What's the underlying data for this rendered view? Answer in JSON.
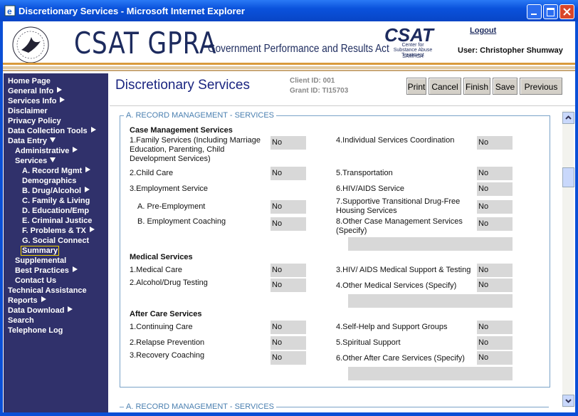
{
  "window": {
    "title": "Discretionary Services - Microsoft Internet Explorer"
  },
  "header": {
    "title": "CSAT GPRA",
    "subtitle": "Government Performance and Results Act",
    "logo_text": "CSAT",
    "logo_caption": "Center for Substance Abuse Treatment",
    "logo_org": "SAMHSA",
    "logout": "Logout",
    "user": "User: Christopher Shumway"
  },
  "nav": [
    {
      "label": "Home Page",
      "level": 0
    },
    {
      "label": "General Info",
      "level": 0,
      "arrow": "right"
    },
    {
      "label": "Services Info",
      "level": 0,
      "arrow": "right"
    },
    {
      "label": "Disclaimer",
      "level": 0
    },
    {
      "label": "Privacy Policy",
      "level": 0
    },
    {
      "label": "Data Collection Tools",
      "level": 0,
      "arrow": "right"
    },
    {
      "label": "Data Entry",
      "level": 0,
      "arrow": "down"
    },
    {
      "label": "Administrative",
      "level": 1,
      "arrow": "right"
    },
    {
      "label": "Services",
      "level": 1,
      "arrow": "down"
    },
    {
      "label": "A. Record Mgmt",
      "level": 2,
      "arrow": "right"
    },
    {
      "label": "Demographics",
      "level": 2
    },
    {
      "label": "B. Drug/Alcohol",
      "level": 2,
      "arrow": "right"
    },
    {
      "label": "C. Family & Living",
      "level": 2
    },
    {
      "label": "D. Education/Emp",
      "level": 2
    },
    {
      "label": "E. Criminal Justice",
      "level": 2
    },
    {
      "label": "F. Problems & TX",
      "level": 2,
      "arrow": "right"
    },
    {
      "label": "G. Social Connect",
      "level": 2
    },
    {
      "label": "Summary",
      "level": 2,
      "selected": true
    },
    {
      "label": "Supplemental",
      "level": 1
    },
    {
      "label": "Best Practices",
      "level": 1,
      "arrow": "right"
    },
    {
      "label": "Contact Us",
      "level": 1
    },
    {
      "label": "Technical Assistance",
      "level": 0
    },
    {
      "label": "Reports",
      "level": 0,
      "arrow": "right"
    },
    {
      "label": "Data Download",
      "level": 0,
      "arrow": "right"
    },
    {
      "label": "Search",
      "level": 0
    },
    {
      "label": "Telephone Log",
      "level": 0
    }
  ],
  "page": {
    "title": "Discretionary Services",
    "client_id": "Client ID: 001",
    "grant_id": "Grant ID: TI15703",
    "buttons": [
      "Print",
      "Cancel",
      "Finish",
      "Save",
      "Previous"
    ]
  },
  "form": {
    "legend": "A. RECORD MANAGEMENT - SERVICES",
    "next_legend": "A. RECORD MANAGEMENT - SERVICES",
    "groups": [
      {
        "heading": "Case Management Services",
        "items": [
          {
            "label": "1.Family Services (Including Marriage Education, Parenting, Child Development Services)",
            "value": "No"
          },
          {
            "label": "2.Child Care",
            "value": "No"
          },
          {
            "label": "3.Employment Service"
          },
          {
            "label": "A. Pre-Employment",
            "value": "No"
          },
          {
            "label": "B. Employment Coaching",
            "value": "No"
          },
          {
            "label": "4.Individual Services Coordination",
            "value": "No"
          },
          {
            "label": "5.Transportation",
            "value": "No"
          },
          {
            "label": "6.HIV/AIDS Service",
            "value": "No"
          },
          {
            "label": "7.Supportive Transitional Drug-Free Housing Services",
            "value": "No"
          },
          {
            "label": "8.Other Case Management Services (Specify)",
            "value": "No"
          }
        ]
      },
      {
        "heading": "Medical Services",
        "items": [
          {
            "label": "1.Medical Care",
            "value": "No"
          },
          {
            "label": "2.Alcohol/Drug Testing",
            "value": "No"
          },
          {
            "label": "3.HIV/ AIDS Medical Support & Testing",
            "value": "No"
          },
          {
            "label": "4.Other Medical Services (Specify)",
            "value": "No"
          }
        ]
      },
      {
        "heading": "After Care Services",
        "items": [
          {
            "label": "1.Continuing Care",
            "value": "No"
          },
          {
            "label": "2.Relapse Prevention",
            "value": "No"
          },
          {
            "label": "3.Recovery Coaching",
            "value": "No"
          },
          {
            "label": "4.Self-Help and Support Groups",
            "value": "No"
          },
          {
            "label": "5.Spiritual Support",
            "value": "No"
          },
          {
            "label": "6.Other After Care Services (Specify)",
            "value": "No"
          }
        ]
      }
    ]
  }
}
